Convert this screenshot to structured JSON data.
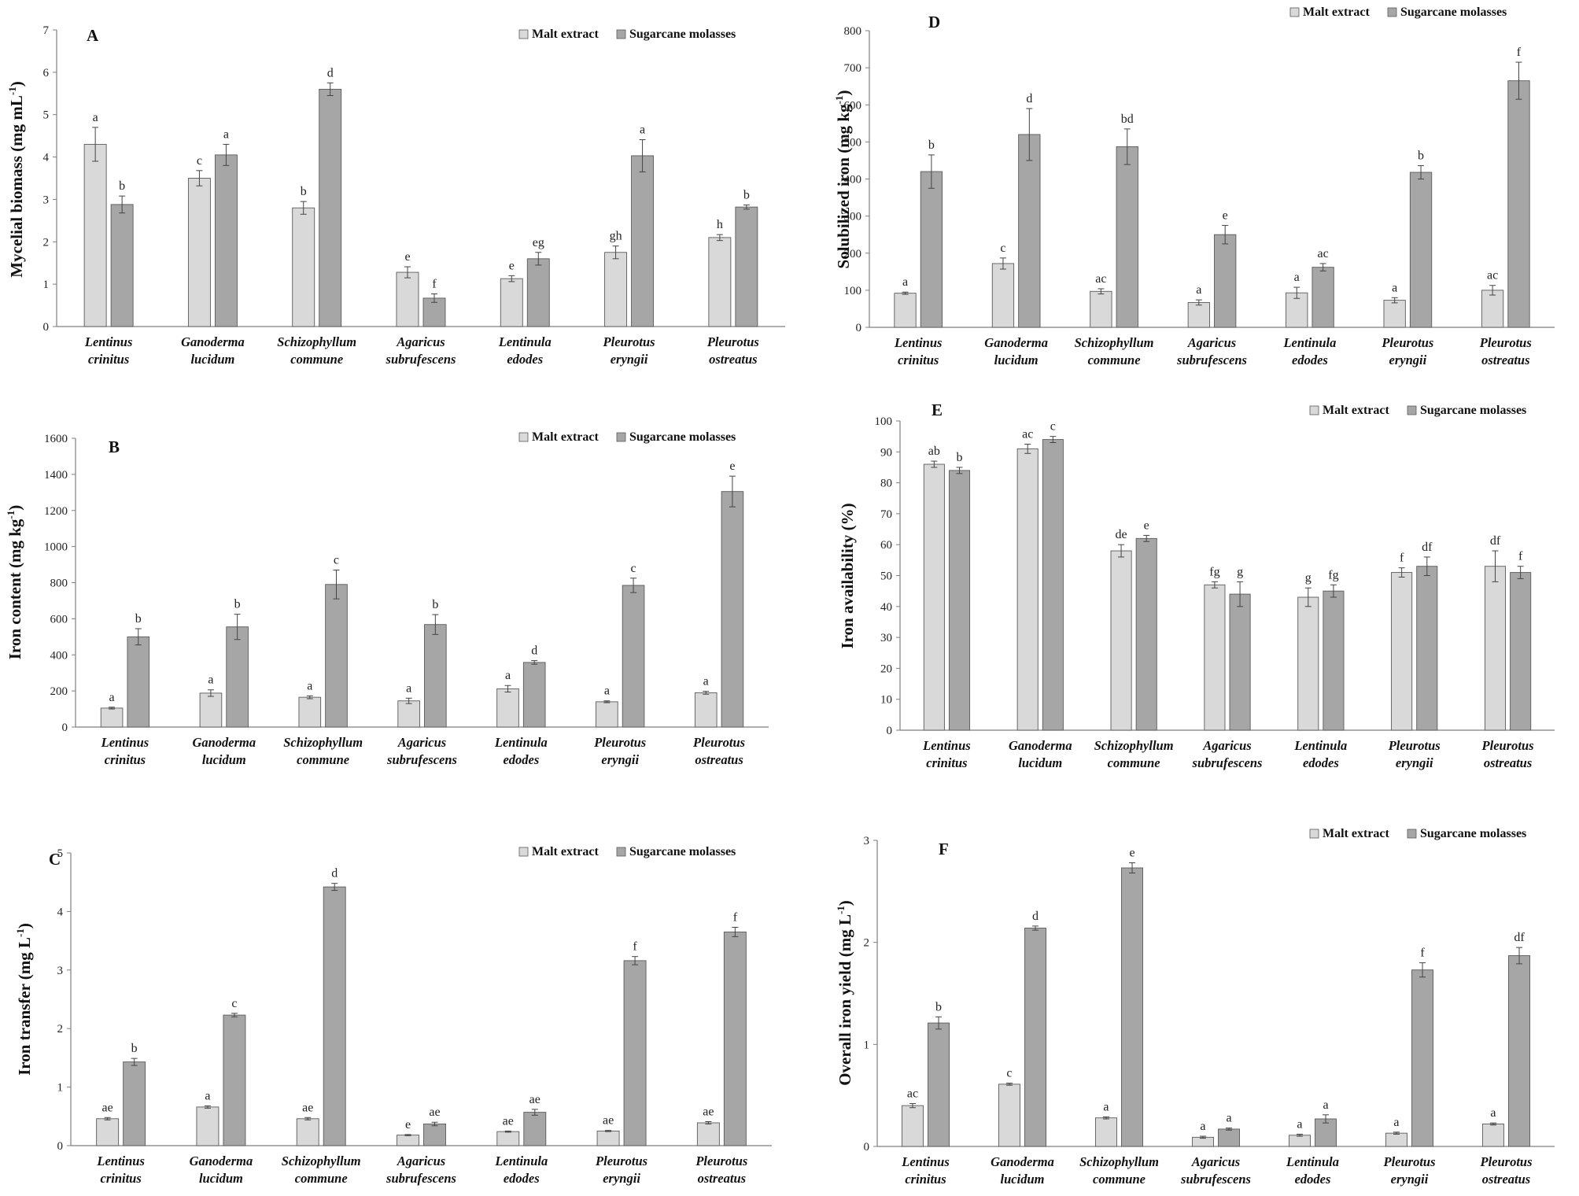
{
  "colors": {
    "malt": "#d9d9d9",
    "molasses": "#a6a6a6",
    "edge": "#5a5a5a",
    "axis": "#7f7f7f"
  },
  "chart_data": [
    {
      "panel": "A",
      "type": "bar",
      "ylabel": "Mycelial biomass (mg mL",
      "ylabel_sup": "-1",
      "ylabel_close": ")",
      "ylim": [
        0,
        7
      ],
      "yticks": [
        0,
        1,
        2,
        3,
        4,
        5,
        6,
        7
      ],
      "categories": [
        [
          "Lentinus",
          "crinitus"
        ],
        [
          "Ganoderma",
          "lucidum"
        ],
        [
          "Schizophyllum",
          "commune"
        ],
        [
          "Agaricus",
          "subrufescens"
        ],
        [
          "Lentinula",
          "edodes"
        ],
        [
          "Pleurotus",
          "eryngii"
        ],
        [
          "Pleurotus",
          "ostreatus"
        ]
      ],
      "legend": [
        "Malt extract",
        "Sugarcane molasses"
      ],
      "series": [
        {
          "name": "Malt extract",
          "values": [
            4.3,
            3.5,
            2.8,
            1.28,
            1.13,
            1.75,
            2.1
          ],
          "errors": [
            0.4,
            0.18,
            0.15,
            0.13,
            0.07,
            0.15,
            0.07
          ],
          "labels": [
            "a",
            "c",
            "b",
            "e",
            "e",
            "gh",
            "h"
          ]
        },
        {
          "name": "Sugarcane molasses",
          "values": [
            2.88,
            4.05,
            5.6,
            0.67,
            1.6,
            4.03,
            2.82
          ],
          "errors": [
            0.2,
            0.25,
            0.15,
            0.1,
            0.15,
            0.38,
            0.05
          ],
          "labels": [
            "b",
            "a",
            "d",
            "f",
            "eg",
            "a",
            "b"
          ]
        }
      ]
    },
    {
      "panel": "B",
      "type": "bar",
      "ylabel": "Iron content (mg kg",
      "ylabel_sup": "-1",
      "ylabel_close": ")",
      "ylim": [
        0,
        1600
      ],
      "yticks": [
        0,
        200,
        400,
        600,
        800,
        1000,
        1200,
        1400,
        1600
      ],
      "categories": [
        [
          "Lentinus",
          "crinitus"
        ],
        [
          "Ganoderma",
          "lucidum"
        ],
        [
          "Schizophyllum",
          "commune"
        ],
        [
          "Agaricus",
          "subrufescens"
        ],
        [
          "Lentinula",
          "edodes"
        ],
        [
          "Pleurotus",
          "eryngii"
        ],
        [
          "Pleurotus",
          "ostreatus"
        ]
      ],
      "legend": [
        "Malt extract",
        "Sugarcane molasses"
      ],
      "series": [
        {
          "name": "Malt extract",
          "values": [
            105,
            188,
            165,
            145,
            212,
            140,
            190
          ],
          "errors": [
            5,
            18,
            8,
            15,
            18,
            5,
            8
          ],
          "labels": [
            "a",
            "a",
            "a",
            "a",
            "a",
            "a",
            "a"
          ]
        },
        {
          "name": "Sugarcane molasses",
          "values": [
            500,
            555,
            790,
            568,
            358,
            785,
            1305
          ],
          "errors": [
            45,
            70,
            80,
            55,
            10,
            40,
            85
          ],
          "labels": [
            "b",
            "b",
            "c",
            "b",
            "d",
            "c",
            "e"
          ]
        }
      ]
    },
    {
      "panel": "C",
      "type": "bar",
      "ylabel": "Iron transfer (mg L",
      "ylabel_sup": "-1",
      "ylabel_close": ")",
      "ylim": [
        0,
        5
      ],
      "yticks": [
        0,
        1,
        2,
        3,
        4,
        5
      ],
      "categories": [
        [
          "Lentinus",
          "crinitus"
        ],
        [
          "Ganoderma",
          "lucidum"
        ],
        [
          "Schizophyllum",
          "commune"
        ],
        [
          "Agaricus",
          "subrufescens"
        ],
        [
          "Lentinula",
          "edodes"
        ],
        [
          "Pleurotus",
          "eryngii"
        ],
        [
          "Pleurotus",
          "ostreatus"
        ]
      ],
      "legend": [
        "Malt extract",
        "Sugarcane molasses"
      ],
      "series": [
        {
          "name": "Malt extract",
          "values": [
            0.46,
            0.66,
            0.46,
            0.18,
            0.24,
            0.25,
            0.39
          ],
          "errors": [
            0.02,
            0.02,
            0.02,
            0.01,
            0.01,
            0.01,
            0.02
          ],
          "labels": [
            "ae",
            "a",
            "ae",
            "e",
            "ae",
            "ae",
            "ae"
          ]
        },
        {
          "name": "Sugarcane molasses",
          "values": [
            1.43,
            2.23,
            4.42,
            0.37,
            0.57,
            3.16,
            3.65
          ],
          "errors": [
            0.06,
            0.03,
            0.06,
            0.03,
            0.05,
            0.07,
            0.08
          ],
          "labels": [
            "b",
            "c",
            "d",
            "ae",
            "ae",
            "f",
            "f"
          ]
        }
      ]
    },
    {
      "panel": "D",
      "type": "bar",
      "ylabel": "Solubilized iron (mg kg",
      "ylabel_sup": "-1",
      "ylabel_close": ")",
      "ylim": [
        0,
        800
      ],
      "yticks": [
        0,
        100,
        200,
        300,
        400,
        500,
        600,
        700,
        800
      ],
      "categories": [
        [
          "Lentinus",
          "crinitus"
        ],
        [
          "Ganoderma",
          "lucidum"
        ],
        [
          "Schizophyllum",
          "commune"
        ],
        [
          "Agaricus",
          "subrufescens"
        ],
        [
          "Lentinula",
          "edodes"
        ],
        [
          "Pleurotus",
          "eryngii"
        ],
        [
          "Pleurotus",
          "ostreatus"
        ]
      ],
      "legend": [
        "Malt extract",
        "Sugarcane molasses"
      ],
      "series": [
        {
          "name": "Malt extract",
          "values": [
            92,
            172,
            97,
            67,
            93,
            73,
            100
          ],
          "errors": [
            3,
            15,
            7,
            7,
            15,
            7,
            13
          ],
          "labels": [
            "a",
            "c",
            "ac",
            "a",
            "a",
            "a",
            "ac"
          ]
        },
        {
          "name": "Sugarcane molasses",
          "values": [
            420,
            520,
            487,
            250,
            162,
            418,
            665
          ],
          "errors": [
            45,
            70,
            48,
            25,
            10,
            18,
            50
          ],
          "labels": [
            "b",
            "d",
            "bd",
            "e",
            "ac",
            "b",
            "f"
          ]
        }
      ]
    },
    {
      "panel": "E",
      "type": "bar",
      "ylabel": "Iron availability (%)",
      "ylabel_sup": "",
      "ylabel_close": "",
      "ylim": [
        0,
        100
      ],
      "yticks": [
        0,
        10,
        20,
        30,
        40,
        50,
        60,
        70,
        80,
        90,
        100
      ],
      "categories": [
        [
          "Lentinus",
          "crinitus"
        ],
        [
          "Ganoderma",
          "lucidum"
        ],
        [
          "Schizophyllum",
          "commune"
        ],
        [
          "Agaricus",
          "subrufescens"
        ],
        [
          "Lentinula",
          "edodes"
        ],
        [
          "Pleurotus",
          "eryngii"
        ],
        [
          "Pleurotus",
          "ostreatus"
        ]
      ],
      "legend": [
        "Malt extract",
        "Sugarcane molasses"
      ],
      "series": [
        {
          "name": "Malt extract",
          "values": [
            86,
            91,
            58,
            47,
            43,
            51,
            53
          ],
          "errors": [
            1,
            1.5,
            2,
            1,
            3,
            1.5,
            5
          ],
          "labels": [
            "ab",
            "ac",
            "de",
            "fg",
            "g",
            "f",
            "df"
          ]
        },
        {
          "name": "Sugarcane molasses",
          "values": [
            84,
            94,
            62,
            44,
            45,
            53,
            51
          ],
          "errors": [
            1,
            1,
            1,
            4,
            2,
            3,
            2
          ],
          "labels": [
            "b",
            "c",
            "e",
            "g",
            "fg",
            "df",
            "f"
          ]
        }
      ]
    },
    {
      "panel": "F",
      "type": "bar",
      "ylabel": "Overall iron yield (mg L",
      "ylabel_sup": "-1",
      "ylabel_close": ")",
      "ylim": [
        0,
        3
      ],
      "yticks": [
        0,
        1,
        2,
        3
      ],
      "categories": [
        [
          "Lentinus",
          "crinitus"
        ],
        [
          "Ganoderma",
          "lucidum"
        ],
        [
          "Schizophyllum",
          "commune"
        ],
        [
          "Agaricus",
          "subrufescens"
        ],
        [
          "Lentinula",
          "edodes"
        ],
        [
          "Pleurotus",
          "eryngii"
        ],
        [
          "Pleurotus",
          "ostreatus"
        ]
      ],
      "legend": [
        "Malt extract",
        "Sugarcane molasses"
      ],
      "series": [
        {
          "name": "Malt extract",
          "values": [
            0.4,
            0.61,
            0.28,
            0.09,
            0.11,
            0.13,
            0.22
          ],
          "errors": [
            0.02,
            0.01,
            0.01,
            0.01,
            0.01,
            0.01,
            0.01
          ],
          "labels": [
            "ac",
            "c",
            "a",
            "a",
            "a",
            "a",
            "a"
          ]
        },
        {
          "name": "Sugarcane molasses",
          "values": [
            1.21,
            2.14,
            2.73,
            0.17,
            0.27,
            1.73,
            1.87
          ],
          "errors": [
            0.06,
            0.02,
            0.05,
            0.01,
            0.04,
            0.07,
            0.08
          ],
          "labels": [
            "b",
            "d",
            "e",
            "a",
            "a",
            "f",
            "df"
          ]
        }
      ]
    }
  ]
}
